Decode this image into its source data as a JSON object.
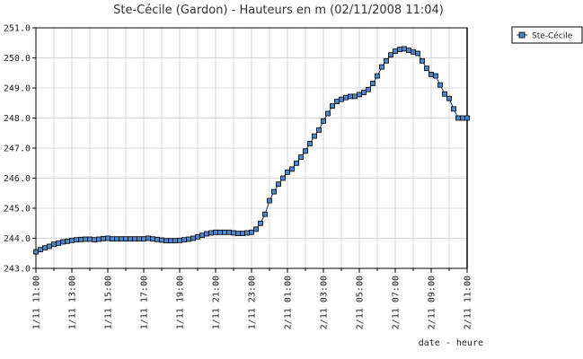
{
  "chart_data": {
    "type": "line",
    "title": "Ste-Cécile (Gardon) - Hauteurs en m (02/11/2008 11:04)",
    "xlabel": "date - heure",
    "ylabel": "",
    "ylim": [
      243.0,
      251.0
    ],
    "yticks": [
      "243.0",
      "244.0",
      "245.0",
      "246.0",
      "247.0",
      "248.0",
      "249.0",
      "250.0",
      "251.0"
    ],
    "x_unit": "hours after 01/11 11:00",
    "xlim": [
      0,
      24
    ],
    "xticks": [
      "1/11 11:00",
      "1/11 13:00",
      "1/11 15:00",
      "1/11 17:00",
      "1/11 19:00",
      "1/11 21:00",
      "1/11 23:00",
      "2/11 01:00",
      "2/11 03:00",
      "2/11 05:00",
      "2/11 07:00",
      "2/11 09:00",
      "2/11 11:00"
    ],
    "grid": true,
    "legend_position": "top-right",
    "series_color": "#4a86c8",
    "series": [
      {
        "name": "Ste-Cécile",
        "x": [
          0.0,
          0.25,
          0.5,
          0.75,
          1.0,
          1.25,
          1.5,
          1.75,
          2.0,
          2.25,
          2.5,
          2.75,
          3.0,
          3.25,
          3.5,
          3.75,
          4.0,
          4.25,
          4.5,
          4.75,
          5.0,
          5.25,
          5.5,
          5.75,
          6.0,
          6.25,
          6.5,
          6.75,
          7.0,
          7.25,
          7.5,
          7.75,
          8.0,
          8.25,
          8.5,
          8.75,
          9.0,
          9.25,
          9.5,
          9.75,
          10.0,
          10.25,
          10.5,
          10.75,
          11.0,
          11.25,
          11.5,
          11.75,
          12.0,
          12.25,
          12.5,
          12.75,
          13.0,
          13.25,
          13.5,
          13.75,
          14.0,
          14.25,
          14.5,
          14.75,
          15.0,
          15.25,
          15.5,
          15.75,
          16.0,
          16.25,
          16.5,
          16.75,
          17.0,
          17.25,
          17.5,
          17.75,
          18.0,
          18.25,
          18.5,
          18.75,
          19.0,
          19.25,
          19.5,
          19.75,
          20.0,
          20.25,
          20.5,
          20.75,
          21.0,
          21.25,
          21.5,
          21.75,
          22.0,
          22.25,
          22.5,
          22.75,
          23.0,
          23.25,
          23.5,
          23.75,
          24.0
        ],
        "values": [
          243.55,
          243.62,
          243.68,
          243.73,
          243.8,
          243.84,
          243.88,
          243.9,
          243.93,
          243.95,
          243.96,
          243.97,
          243.97,
          243.95,
          243.97,
          243.99,
          244.0,
          243.98,
          243.98,
          243.98,
          243.98,
          243.98,
          243.98,
          243.98,
          243.98,
          244.0,
          243.98,
          243.96,
          243.94,
          243.92,
          243.92,
          243.92,
          243.93,
          243.95,
          243.97,
          244.0,
          244.05,
          244.1,
          244.15,
          244.18,
          244.2,
          244.2,
          244.2,
          244.2,
          244.18,
          244.16,
          244.16,
          244.18,
          244.2,
          244.3,
          244.5,
          244.8,
          245.25,
          245.55,
          245.8,
          246.0,
          246.2,
          246.3,
          246.5,
          246.7,
          246.9,
          247.15,
          247.4,
          247.6,
          247.9,
          248.15,
          248.4,
          248.55,
          248.62,
          248.68,
          248.72,
          248.72,
          248.78,
          248.85,
          248.95,
          249.15,
          249.4,
          249.7,
          249.9,
          250.1,
          250.22,
          250.28,
          250.3,
          250.25,
          250.2,
          250.15,
          249.9,
          249.65,
          249.45,
          249.4,
          249.1,
          248.8,
          248.65,
          248.3,
          248.0,
          248.0,
          248.0
        ]
      }
    ]
  }
}
